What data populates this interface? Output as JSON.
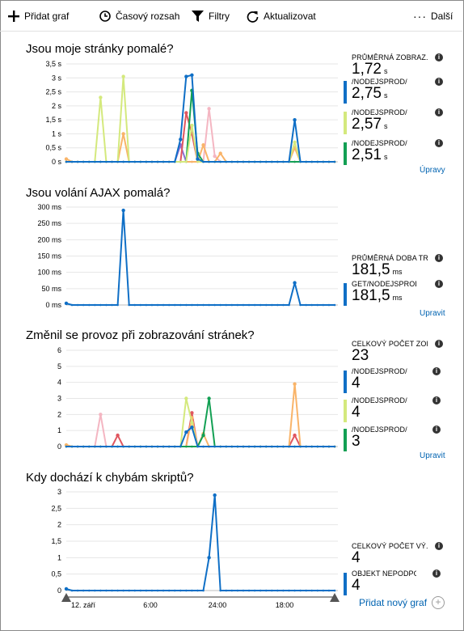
{
  "toolbar": {
    "add_chart": "Přidat graf",
    "time_range": "Časový rozsah",
    "filters": "Filtry",
    "refresh": "Aktualizovat",
    "more": "Další"
  },
  "colors": {
    "blue": "#0f6fc6",
    "lime": "#d4e97d",
    "green": "#13a054",
    "orange": "#f9b469",
    "pink": "#f4b6c2",
    "red": "#e0565f",
    "purple": "#8c6fd6"
  },
  "x_ticks": [
    "12. září",
    "6:00",
    "24:00",
    "18:00"
  ],
  "add_new_chart": "Přidat nový graf",
  "charts": [
    {
      "title": "Jsou moje stránky pomalé?",
      "edit_label": "Úpravy",
      "metrics": [
        {
          "label": "PRŮMĚRNÁ ZOBRAZ...",
          "value": "1,72",
          "unit": "s",
          "color": ""
        },
        {
          "label": "/NODEJSPROD/",
          "value": "2,75",
          "unit": "s",
          "color": "#0f6fc6"
        },
        {
          "label": "/NODEJSPROD/",
          "value": "2,57",
          "unit": "s",
          "color": "#d4e97d"
        },
        {
          "label": "/NODEJSPROD/",
          "value": "2,51",
          "unit": "s",
          "color": "#13a054"
        }
      ]
    },
    {
      "title": "Jsou volání AJAX pomalá?",
      "edit_label": "Upravit",
      "metrics": [
        {
          "label": "PRŮMĚRNÁ DOBA TR...",
          "value": "181,5",
          "unit": "ms",
          "color": ""
        },
        {
          "label": "GET/NODEJSPROD/",
          "value": "181,5",
          "unit": "ms",
          "color": "#0f6fc6"
        }
      ]
    },
    {
      "title": "Změnil se provoz při zobrazování stránek?",
      "edit_label": "Upravit",
      "metrics": [
        {
          "label": "CELKOVÝ POČET ZOB...",
          "value": "23",
          "unit": "",
          "color": ""
        },
        {
          "label": "/NODEJSPROD/",
          "value": "4",
          "unit": "",
          "color": "#0f6fc6"
        },
        {
          "label": "/NODEJSPROD/",
          "value": "4",
          "unit": "",
          "color": "#d4e97d"
        },
        {
          "label": "/NODEJSPROD/",
          "value": "3",
          "unit": "",
          "color": "#13a054"
        }
      ]
    },
    {
      "title": "Kdy dochází k chybám skriptů?",
      "edit_label": "",
      "metrics": [
        {
          "label": "CELKOVÝ POČET VÝ...",
          "value": "4",
          "unit": "",
          "color": ""
        },
        {
          "label": "OBJEKT NEPODPORUJ...",
          "value": "4",
          "unit": "",
          "color": "#0f6fc6"
        }
      ]
    }
  ],
  "chart_data": [
    {
      "type": "line",
      "x_points": 48,
      "y_ticks": [
        "0 s",
        "0,5 s",
        "1 s",
        "1,5 s",
        "2 s",
        "2,5 s",
        "3 s",
        "3,5 s"
      ],
      "ylim": [
        0,
        3.5
      ],
      "series": [
        {
          "color": "#0f6fc6",
          "peaks": [
            [
              20,
              0.8
            ],
            [
              21,
              3.05
            ],
            [
              22,
              3.1
            ],
            [
              23,
              0.1
            ],
            [
              40,
              1.5
            ]
          ]
        },
        {
          "color": "#d4e97d",
          "peaks": [
            [
              6,
              2.3
            ],
            [
              10,
              3.05
            ],
            [
              22,
              1.3
            ],
            [
              40,
              0.7
            ]
          ]
        },
        {
          "color": "#13a054",
          "peaks": [
            [
              22,
              2.55
            ],
            [
              23,
              0.3
            ]
          ]
        },
        {
          "color": "#f9b469",
          "peaks": [
            [
              0,
              0.1
            ],
            [
              10,
              1.0
            ],
            [
              24,
              0.6
            ],
            [
              27,
              0.3
            ],
            [
              40,
              0.5
            ]
          ]
        },
        {
          "color": "#f4b6c2",
          "peaks": [
            [
              25,
              1.9
            ],
            [
              26,
              0.2
            ]
          ]
        },
        {
          "color": "#e0565f",
          "peaks": [
            [
              21,
              1.75
            ],
            [
              22,
              1.0
            ]
          ]
        },
        {
          "color": "#8c6fd6",
          "peaks": [
            [
              20,
              0.6
            ]
          ]
        }
      ]
    },
    {
      "type": "line",
      "x_points": 48,
      "y_ticks": [
        "0 ms",
        "50 ms",
        "100 ms",
        "150 ms",
        "200 ms",
        "250 ms",
        "300 ms"
      ],
      "ylim": [
        0,
        300
      ],
      "series": [
        {
          "color": "#0f6fc6",
          "peaks": [
            [
              0,
              5
            ],
            [
              10,
              290
            ],
            [
              40,
              68
            ]
          ]
        }
      ]
    },
    {
      "type": "line",
      "x_points": 48,
      "y_ticks": [
        "0",
        "1",
        "2",
        "3",
        "4",
        "5",
        "6"
      ],
      "ylim": [
        0,
        6
      ],
      "series": [
        {
          "color": "#0f6fc6",
          "peaks": [
            [
              21,
              0.9
            ],
            [
              22,
              1.2
            ]
          ]
        },
        {
          "color": "#d4e97d",
          "peaks": [
            [
              21,
              3.0
            ],
            [
              22,
              1.5
            ]
          ]
        },
        {
          "color": "#13a054",
          "peaks": [
            [
              25,
              3.0
            ],
            [
              24,
              0.7
            ]
          ]
        },
        {
          "color": "#f9b469",
          "peaks": [
            [
              0,
              0.1
            ],
            [
              22,
              1.8
            ],
            [
              24,
              0.8
            ],
            [
              40,
              3.9
            ]
          ]
        },
        {
          "color": "#f4b6c2",
          "peaks": [
            [
              6,
              2.0
            ]
          ]
        },
        {
          "color": "#e0565f",
          "peaks": [
            [
              9,
              0.7
            ],
            [
              22,
              2.1
            ],
            [
              40,
              0.7
            ]
          ]
        }
      ]
    },
    {
      "type": "line",
      "x_points": 48,
      "y_ticks": [
        "0",
        "0,5",
        "1",
        "1,5",
        "2",
        "2,5",
        "3"
      ],
      "ylim": [
        0,
        3
      ],
      "series": [
        {
          "color": "#0f6fc6",
          "peaks": [
            [
              0,
              0.05
            ],
            [
              25,
              1.0
            ],
            [
              26,
              2.9
            ]
          ]
        }
      ]
    }
  ]
}
